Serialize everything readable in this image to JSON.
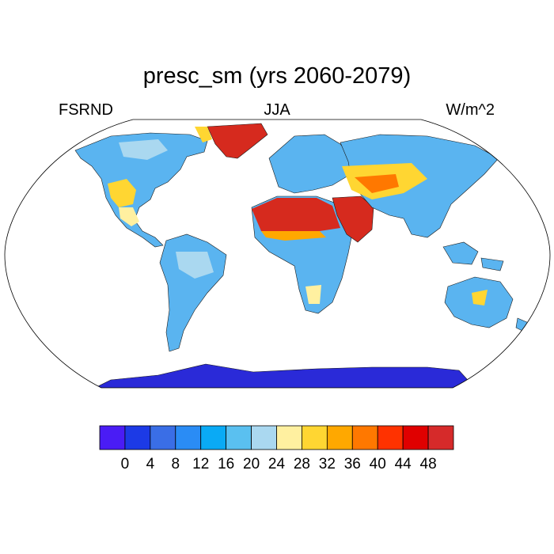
{
  "title": "presc_sm (yrs 2060-2079)",
  "left_label": "FSRND",
  "center_label": "JJA",
  "right_label": "W/m^2",
  "map": {
    "projection": "Robinson",
    "land_colors": {
      "antarctica": "#2a2ad8",
      "greenland": "#d62a1e",
      "sahara_arabia": "#d62a1e",
      "default_land": "#5ab4f0"
    }
  },
  "colorbar": {
    "colors": [
      "#4a1cf5",
      "#1c3ae6",
      "#3a6ee6",
      "#2a8cf5",
      "#0aaaf5",
      "#5ac0f0",
      "#aad8f0",
      "#fff0a0",
      "#ffd632",
      "#ffa800",
      "#ff7800",
      "#ff3200",
      "#e00000",
      "#d62a2a"
    ],
    "tick_labels": [
      "0",
      "4",
      "8",
      "12",
      "16",
      "20",
      "24",
      "28",
      "32",
      "36",
      "40",
      "44",
      "48"
    ]
  }
}
